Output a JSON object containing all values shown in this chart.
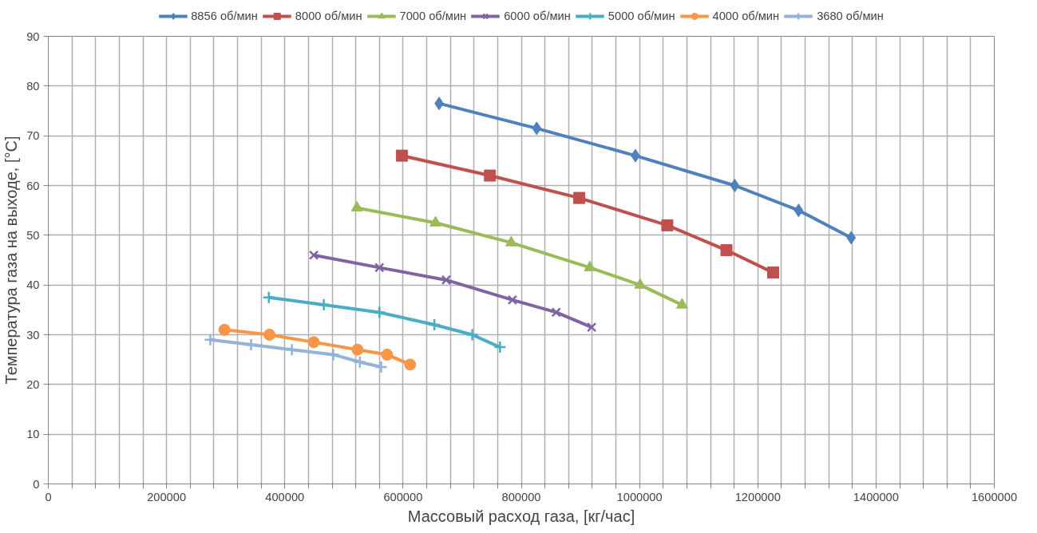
{
  "chart_data": {
    "type": "line",
    "xlabel": "Массовый расход газа, [кг/час]",
    "ylabel": "Температура газа на выходе, [°C]",
    "xlim": [
      0,
      1600000
    ],
    "ylim": [
      0,
      90
    ],
    "xticks": [
      0,
      {
        "value": 40000,
        "label": null
      },
      {
        "value": 80000,
        "label": null
      },
      {
        "value": 120000,
        "label": null
      },
      {
        "value": 160000,
        "label": null
      },
      200000,
      {
        "value": 240000,
        "label": null
      },
      {
        "value": 280000,
        "label": null
      },
      {
        "value": 320000,
        "label": null
      },
      {
        "value": 360000,
        "label": null
      },
      400000,
      {
        "value": 440000,
        "label": null
      },
      {
        "value": 480000,
        "label": null
      },
      {
        "value": 520000,
        "label": null
      },
      {
        "value": 560000,
        "label": null
      },
      600000,
      {
        "value": 640000,
        "label": null
      },
      {
        "value": 680000,
        "label": null
      },
      {
        "value": 720000,
        "label": null
      },
      {
        "value": 760000,
        "label": null
      },
      800000,
      {
        "value": 840000,
        "label": null
      },
      {
        "value": 880000,
        "label": null
      },
      {
        "value": 920000,
        "label": null
      },
      {
        "value": 960000,
        "label": null
      },
      1000000,
      {
        "value": 1040000,
        "label": null
      },
      {
        "value": 1080000,
        "label": null
      },
      {
        "value": 1120000,
        "label": null
      },
      {
        "value": 1160000,
        "label": null
      },
      1200000,
      {
        "value": 1240000,
        "label": null
      },
      {
        "value": 1280000,
        "label": null
      },
      {
        "value": 1320000,
        "label": null
      },
      {
        "value": 1360000,
        "label": null
      },
      1400000,
      {
        "value": 1440000,
        "label": null
      },
      {
        "value": 1480000,
        "label": null
      },
      {
        "value": 1520000,
        "label": null
      },
      {
        "value": 1560000,
        "label": null
      },
      1600000
    ],
    "yticks": [
      0,
      10,
      20,
      30,
      40,
      50,
      60,
      70,
      80,
      90
    ],
    "grid": true,
    "legend": "top",
    "series": [
      {
        "name": "8856 об/мин",
        "color": "#4f81bd",
        "marker": "diamond",
        "x": [
          661000,
          826000,
          993000,
          1161000,
          1269000,
          1358000
        ],
        "values": [
          76.5,
          71.5,
          66,
          60,
          55,
          49.5
        ]
      },
      {
        "name": "8000 об/мин",
        "color": "#c0504d",
        "marker": "square",
        "x": [
          598000,
          747000,
          898000,
          1047000,
          1147000,
          1226000
        ],
        "values": [
          66,
          62,
          57.5,
          52,
          47,
          42.5
        ]
      },
      {
        "name": "7000 об/мин",
        "color": "#9bbb59",
        "marker": "triangle",
        "x": [
          522000,
          655000,
          783000,
          916000,
          1001000,
          1072000
        ],
        "values": [
          55.5,
          52.5,
          48.5,
          43.5,
          40,
          36
        ]
      },
      {
        "name": "6000 об/мин",
        "color": "#8064a2",
        "marker": "x",
        "x": [
          449000,
          560000,
          673000,
          785000,
          859000,
          919000
        ],
        "values": [
          46,
          43.5,
          41,
          37,
          34.5,
          31.5
        ]
      },
      {
        "name": "5000 об/мин",
        "color": "#4bacc6",
        "marker": "cross",
        "x": [
          373000,
          466000,
          560000,
          653000,
          717000,
          764000
        ],
        "values": [
          37.5,
          36,
          34.5,
          32,
          30,
          27.5
        ]
      },
      {
        "name": "4000 об/мин",
        "color": "#f79646",
        "marker": "circle",
        "x": [
          298000,
          374000,
          449000,
          523000,
          573000,
          612000
        ],
        "values": [
          31,
          30,
          28.5,
          27,
          26,
          24
        ]
      },
      {
        "name": "3680 об/мин",
        "color": "#95b3d7",
        "marker": "cross",
        "x": [
          274000,
          343000,
          412000,
          482000,
          527000,
          563000
        ],
        "values": [
          29,
          28,
          27,
          26,
          24.5,
          23.5
        ]
      }
    ]
  }
}
